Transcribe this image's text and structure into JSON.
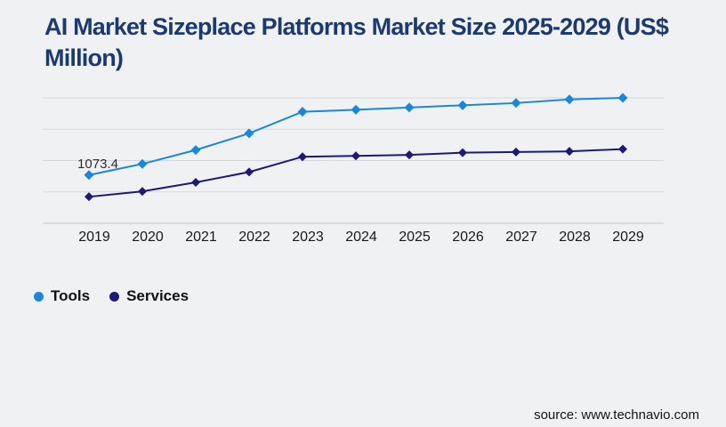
{
  "page": {
    "background": "#f0f1f3"
  },
  "header": {
    "title_full": "AI Market Sizeplace Platforms Market Size 2025-2029 (US$ Million)",
    "title_lines": [
      "AI Market Sizeplace Platforms Market Size 2025-2029 (US$",
      "Million)"
    ],
    "title_color": "#1c3a6e"
  },
  "chart_data": {
    "type": "line",
    "title": "AI Market Sizeplace Platforms Market Size 2025-2029 (US$ Million)",
    "categories": [
      "2019",
      "2020",
      "2021",
      "2022",
      "2023",
      "2024",
      "2025",
      "2026",
      "2027",
      "2028",
      "2029"
    ],
    "series": [
      {
        "name": "Tools",
        "color": "#1b87d9",
        "values": [
          1073.4,
          1320,
          1630,
          2000,
          2480,
          2525,
          2575,
          2625,
          2675,
          2755,
          2790
        ]
      },
      {
        "name": "Services",
        "color": "#1b1b76",
        "values": [
          590,
          710,
          910,
          1140,
          1480,
          1500,
          1520,
          1570,
          1585,
          1600,
          1650
        ]
      }
    ],
    "annotations": [
      {
        "series": "Tools",
        "category": "2019",
        "text": "1073.4"
      }
    ],
    "xlabel": "",
    "ylabel": "",
    "ylim": [
      0,
      2790
    ],
    "y_axis_labels_visible": false,
    "grid": "horizontal",
    "gridline_count": 5,
    "gridline_color": "#d6d7db",
    "axis_line_color": "#c7c8cc",
    "tick_label_color": "#19191c",
    "annotation_color": "#2c2c2e",
    "marker": "diamond",
    "legend_position": "bottom-left"
  },
  "footer": {
    "source_text": "source: www.technavio.com"
  }
}
